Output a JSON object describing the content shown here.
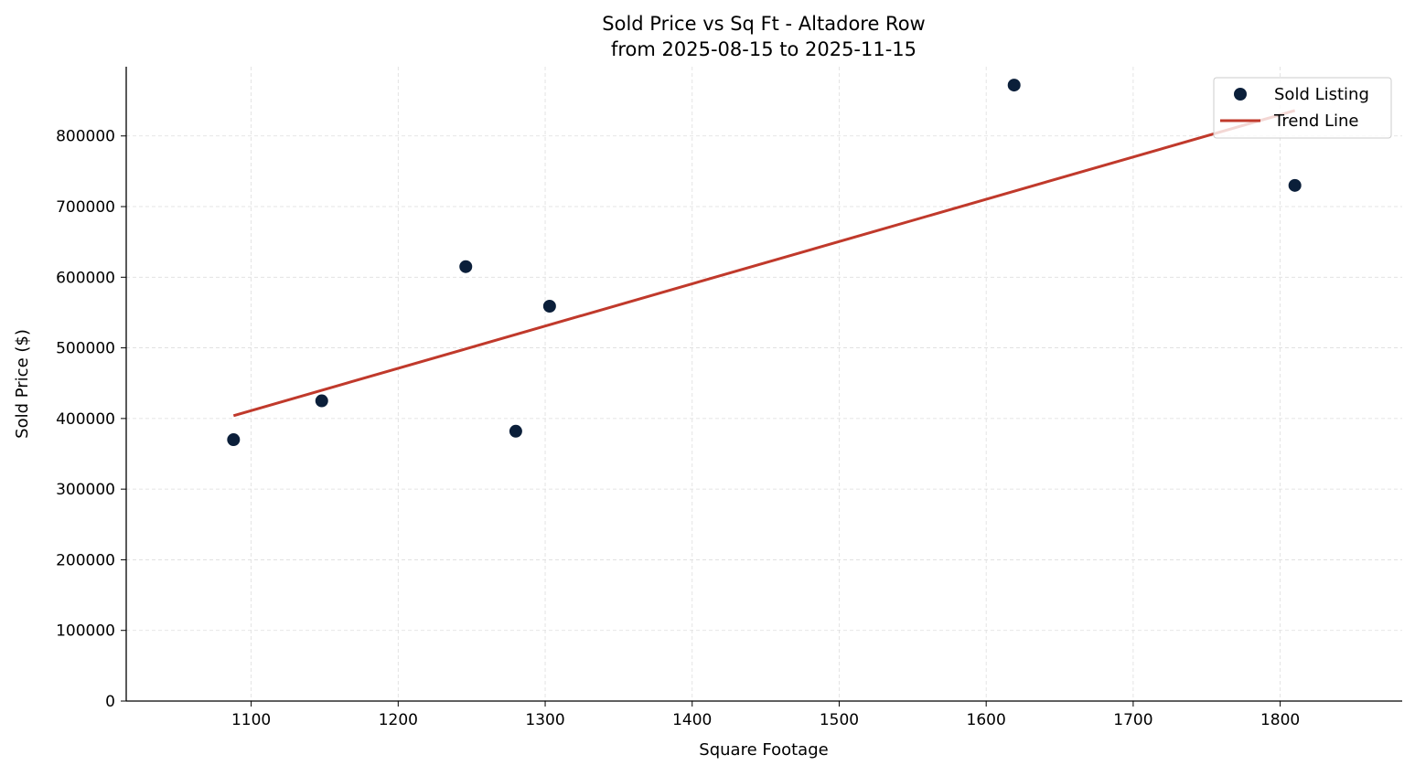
{
  "chart_data": {
    "type": "scatter",
    "title": "Sold Price vs Sq Ft - Altadore Row",
    "subtitle": "from 2025-08-15 to 2025-11-15",
    "xlabel": "Square Footage",
    "ylabel": "Sold Price ($)",
    "xlim": [
      1015,
      1883
    ],
    "ylim": [
      0,
      898000
    ],
    "xticks": [
      1100,
      1200,
      1300,
      1400,
      1500,
      1600,
      1700,
      1800
    ],
    "yticks": [
      0,
      100000,
      200000,
      300000,
      400000,
      500000,
      600000,
      700000,
      800000
    ],
    "grid": true,
    "legend_position": "top-right",
    "series": [
      {
        "name": "Sold Listing",
        "type": "scatter",
        "color": "#0b1f3a",
        "x": [
          1088,
          1148,
          1246,
          1280,
          1303,
          1619,
          1810
        ],
        "y": [
          370000,
          425000,
          615000,
          382000,
          559000,
          872000,
          730000
        ]
      },
      {
        "name": "Trend Line",
        "type": "line",
        "color": "#c0392b",
        "x": [
          1088,
          1810
        ],
        "y": [
          404000,
          836000
        ]
      }
    ]
  }
}
